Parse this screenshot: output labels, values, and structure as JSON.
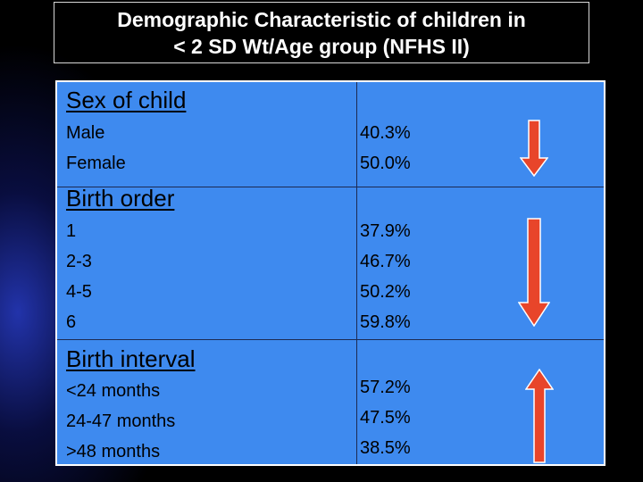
{
  "title": {
    "line1": "Demographic Characteristic  of children in",
    "line2": "< 2 SD Wt/Age group (NFHS II)"
  },
  "sections": [
    {
      "heading": "Sex of child",
      "rows": [
        {
          "label": "Male",
          "value": "40.3%"
        },
        {
          "label": "Female",
          "value": "50.0%"
        }
      ],
      "trend": "arrow-down"
    },
    {
      "heading": "Birth order",
      "rows": [
        {
          "label": "1",
          "value": "37.9%"
        },
        {
          "label": "2-3",
          "value": "46.7%"
        },
        {
          "label": "4-5",
          "value": "50.2%"
        },
        {
          "label": "6",
          "value": "59.8%"
        }
      ],
      "trend": "arrow-down"
    },
    {
      "heading": "Birth interval",
      "rows": [
        {
          "label": "<24 months",
          "value": "57.2%"
        },
        {
          "label": "24-47 months",
          "value": "47.5%"
        },
        {
          "label": ">48 months",
          "value": "38.5%"
        }
      ],
      "trend": "arrow-up"
    }
  ],
  "colors": {
    "table_bg": "#3e8aef",
    "arrow_fill": "#e8452a",
    "arrow_stroke": "#ffffff"
  }
}
